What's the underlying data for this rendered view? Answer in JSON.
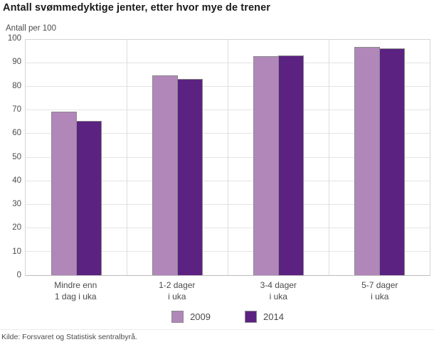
{
  "chart_data": {
    "type": "bar",
    "title": "Antall svømmedyktige jenter, etter hvor mye de trener",
    "unit_label": "Antall per 100",
    "categories": [
      "Mindre enn\n1 dag i uka",
      "1-2 dager\ni uka",
      "3-4 dager\ni uka",
      "5-7 dager\ni uka"
    ],
    "series": [
      {
        "name": "2009",
        "color": "#b187ba",
        "values": [
          69.5,
          85,
          93,
          97
        ]
      },
      {
        "name": "2014",
        "color": "#5b2281",
        "values": [
          65.5,
          83.5,
          93.5,
          96.5
        ]
      }
    ],
    "ylim": [
      0,
      100
    ],
    "y_ticks": [
      0,
      10,
      20,
      30,
      40,
      50,
      60,
      70,
      80,
      90,
      100
    ],
    "grid": true,
    "legend_position": "bottom",
    "bar_outline_color": "#8a8a8a",
    "source": "Kilde: Forsvaret og Statistisk sentralbyrå."
  }
}
